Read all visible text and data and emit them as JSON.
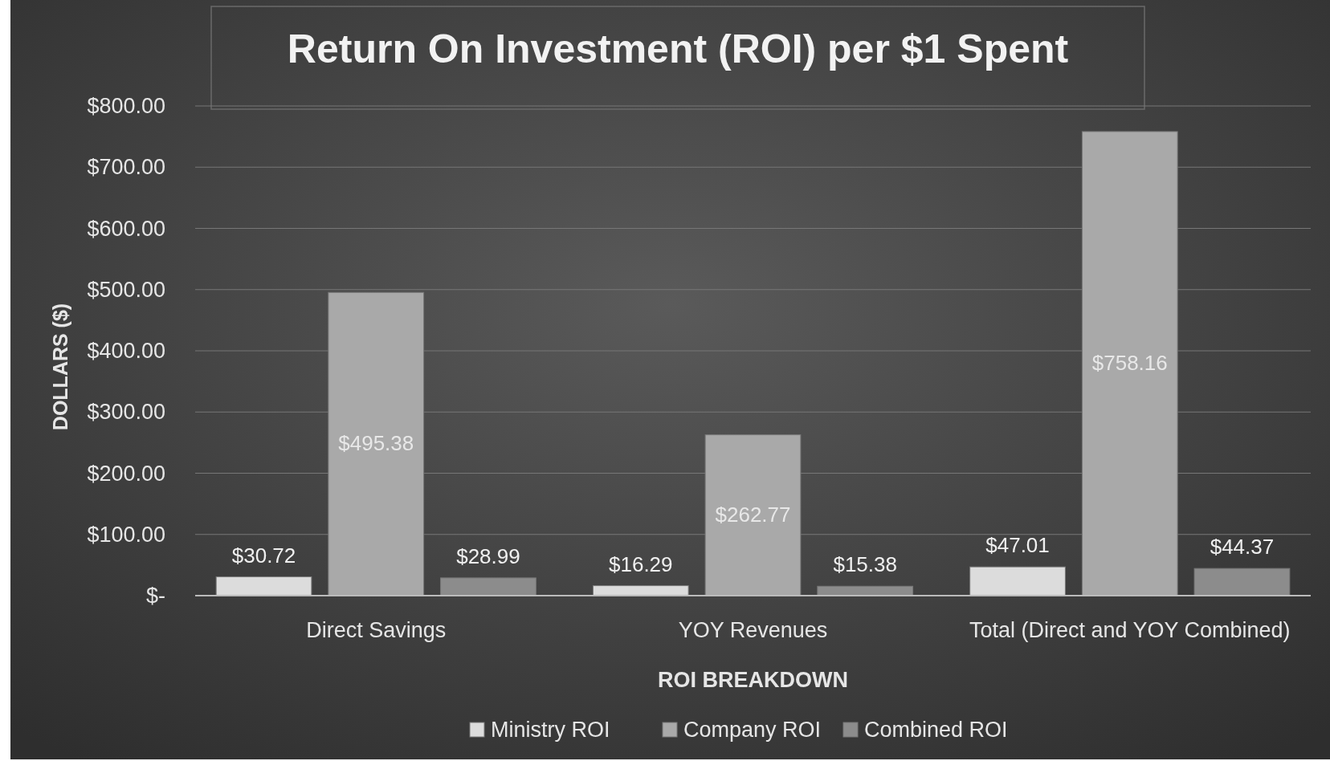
{
  "chart_data": {
    "type": "bar",
    "title": "Return On Investment (ROI) per $1 Spent",
    "xlabel": "ROI BREAKDOWN",
    "ylabel": "DOLLARS ($)",
    "categories": [
      "Direct Savings",
      "YOY Revenues",
      "Total (Direct and YOY Combined)"
    ],
    "series": [
      {
        "name": "Ministry ROI",
        "color": "#dcdcdc",
        "values": [
          30.72,
          16.29,
          47.01
        ],
        "value_labels": [
          "$30.72",
          "$16.29",
          "$47.01"
        ]
      },
      {
        "name": "Company ROI",
        "color": "#a9a9a9",
        "values": [
          495.38,
          262.77,
          758.16
        ],
        "value_labels": [
          "$495.38",
          "$262.77",
          "$758.16"
        ]
      },
      {
        "name": "Combined ROI",
        "color": "#8c8c8c",
        "values": [
          28.99,
          15.38,
          44.37
        ],
        "value_labels": [
          "$28.99",
          "$15.38",
          "$44.37"
        ]
      }
    ],
    "ylim": [
      0,
      800
    ],
    "yticks": [
      {
        "value": 0,
        "label": "$-"
      },
      {
        "value": 100,
        "label": "$100.00"
      },
      {
        "value": 200,
        "label": "$200.00"
      },
      {
        "value": 300,
        "label": "$300.00"
      },
      {
        "value": 400,
        "label": "$400.00"
      },
      {
        "value": 500,
        "label": "$500.00"
      },
      {
        "value": 600,
        "label": "$600.00"
      },
      {
        "value": 700,
        "label": "$700.00"
      },
      {
        "value": 800,
        "label": "$800.00"
      }
    ],
    "grid": "y",
    "legend": "bottom"
  }
}
